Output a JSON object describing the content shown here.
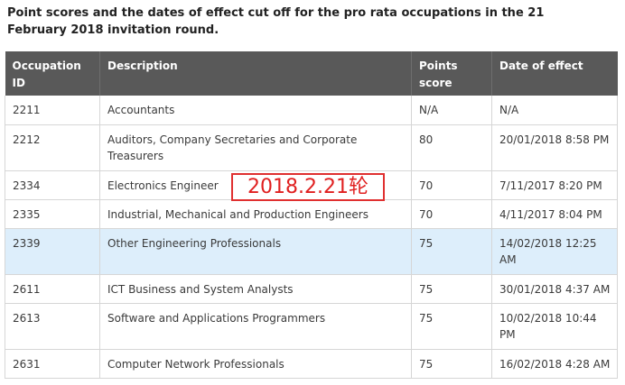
{
  "caption": "Point scores and the dates of effect cut off for the pro rata occupations in the 21 February 2018 invitation round.",
  "table": {
    "headers": [
      "Occupation ID",
      "Description",
      "Points score",
      "Date of effect"
    ],
    "rows": [
      {
        "id": "2211",
        "description": "Accountants",
        "points": "N/A",
        "date": "N/A"
      },
      {
        "id": "2212",
        "description": "Auditors, Company Secretaries and Corporate Treasurers",
        "points": "80",
        "date": "20/01/2018 8:58 PM"
      },
      {
        "id": "2334",
        "description": "Electronics Engineer",
        "points": "70",
        "date": "7/11/2017 8:20 PM"
      },
      {
        "id": "2335",
        "description": "Industrial, Mechanical and Production Engineers",
        "points": "70",
        "date": "4/11/2017  8:04 PM"
      },
      {
        "id": "2339",
        "description": "Other Engineering Professionals",
        "points": "75",
        "date": "14/02/2018  12:25 AM"
      },
      {
        "id": "2611",
        "description": "ICT Business and System Analysts",
        "points": "75",
        "date": "30/01/2018  4:37 AM"
      },
      {
        "id": "2613",
        "description": "Software and Applications Programmers",
        "points": "75",
        "date": "10/02/2018  10:44 PM"
      },
      {
        "id": "2631",
        "description": "Computer Network Professionals",
        "points": "75",
        "date": "16/02/2018 4:28 AM"
      }
    ],
    "highlight_row_color": "#ddeefb",
    "header_color": "#595959"
  },
  "annotation": {
    "text": "2018.2.21轮",
    "color": "#e02020"
  }
}
